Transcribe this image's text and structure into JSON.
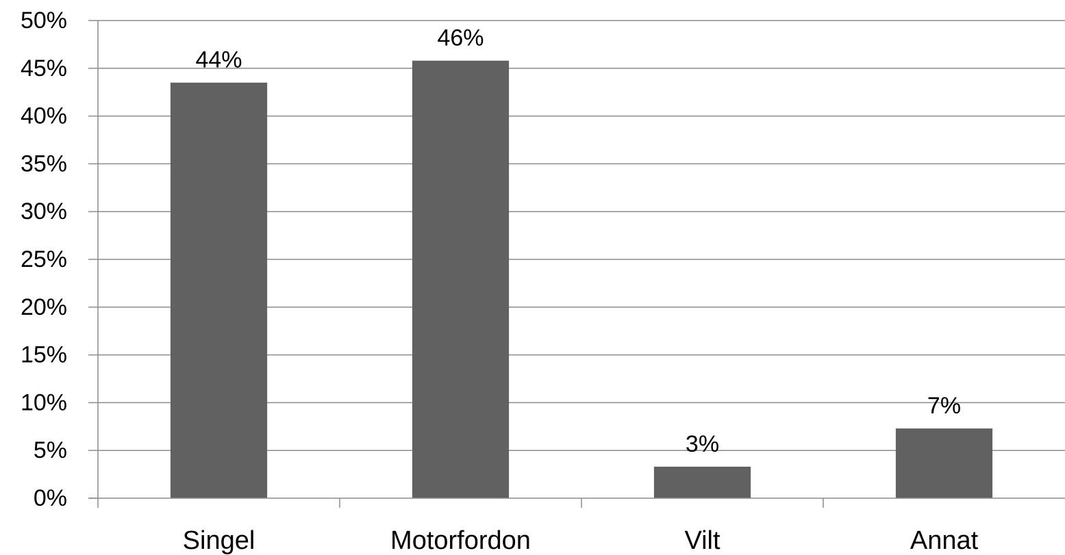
{
  "chart_data": {
    "type": "bar",
    "categories": [
      "Singel",
      "Motorfordon",
      "Vilt",
      "Annat"
    ],
    "values": [
      43.5,
      45.8,
      3.3,
      7.3
    ],
    "data_labels": [
      "44%",
      "46%",
      "3%",
      "7%"
    ],
    "title": "",
    "xlabel": "",
    "ylabel": "",
    "ylim": [
      0,
      50
    ],
    "yticks": [
      0,
      5,
      10,
      15,
      20,
      25,
      30,
      35,
      40,
      45,
      50
    ],
    "ytick_labels": [
      "0%",
      "5%",
      "10%",
      "15%",
      "20%",
      "25%",
      "30%",
      "35%",
      "40%",
      "45%",
      "50%"
    ],
    "grid": true,
    "legend": "none",
    "colors": {
      "bar": "#616161",
      "grid": "#8c8c8c",
      "text": "#000000"
    }
  }
}
